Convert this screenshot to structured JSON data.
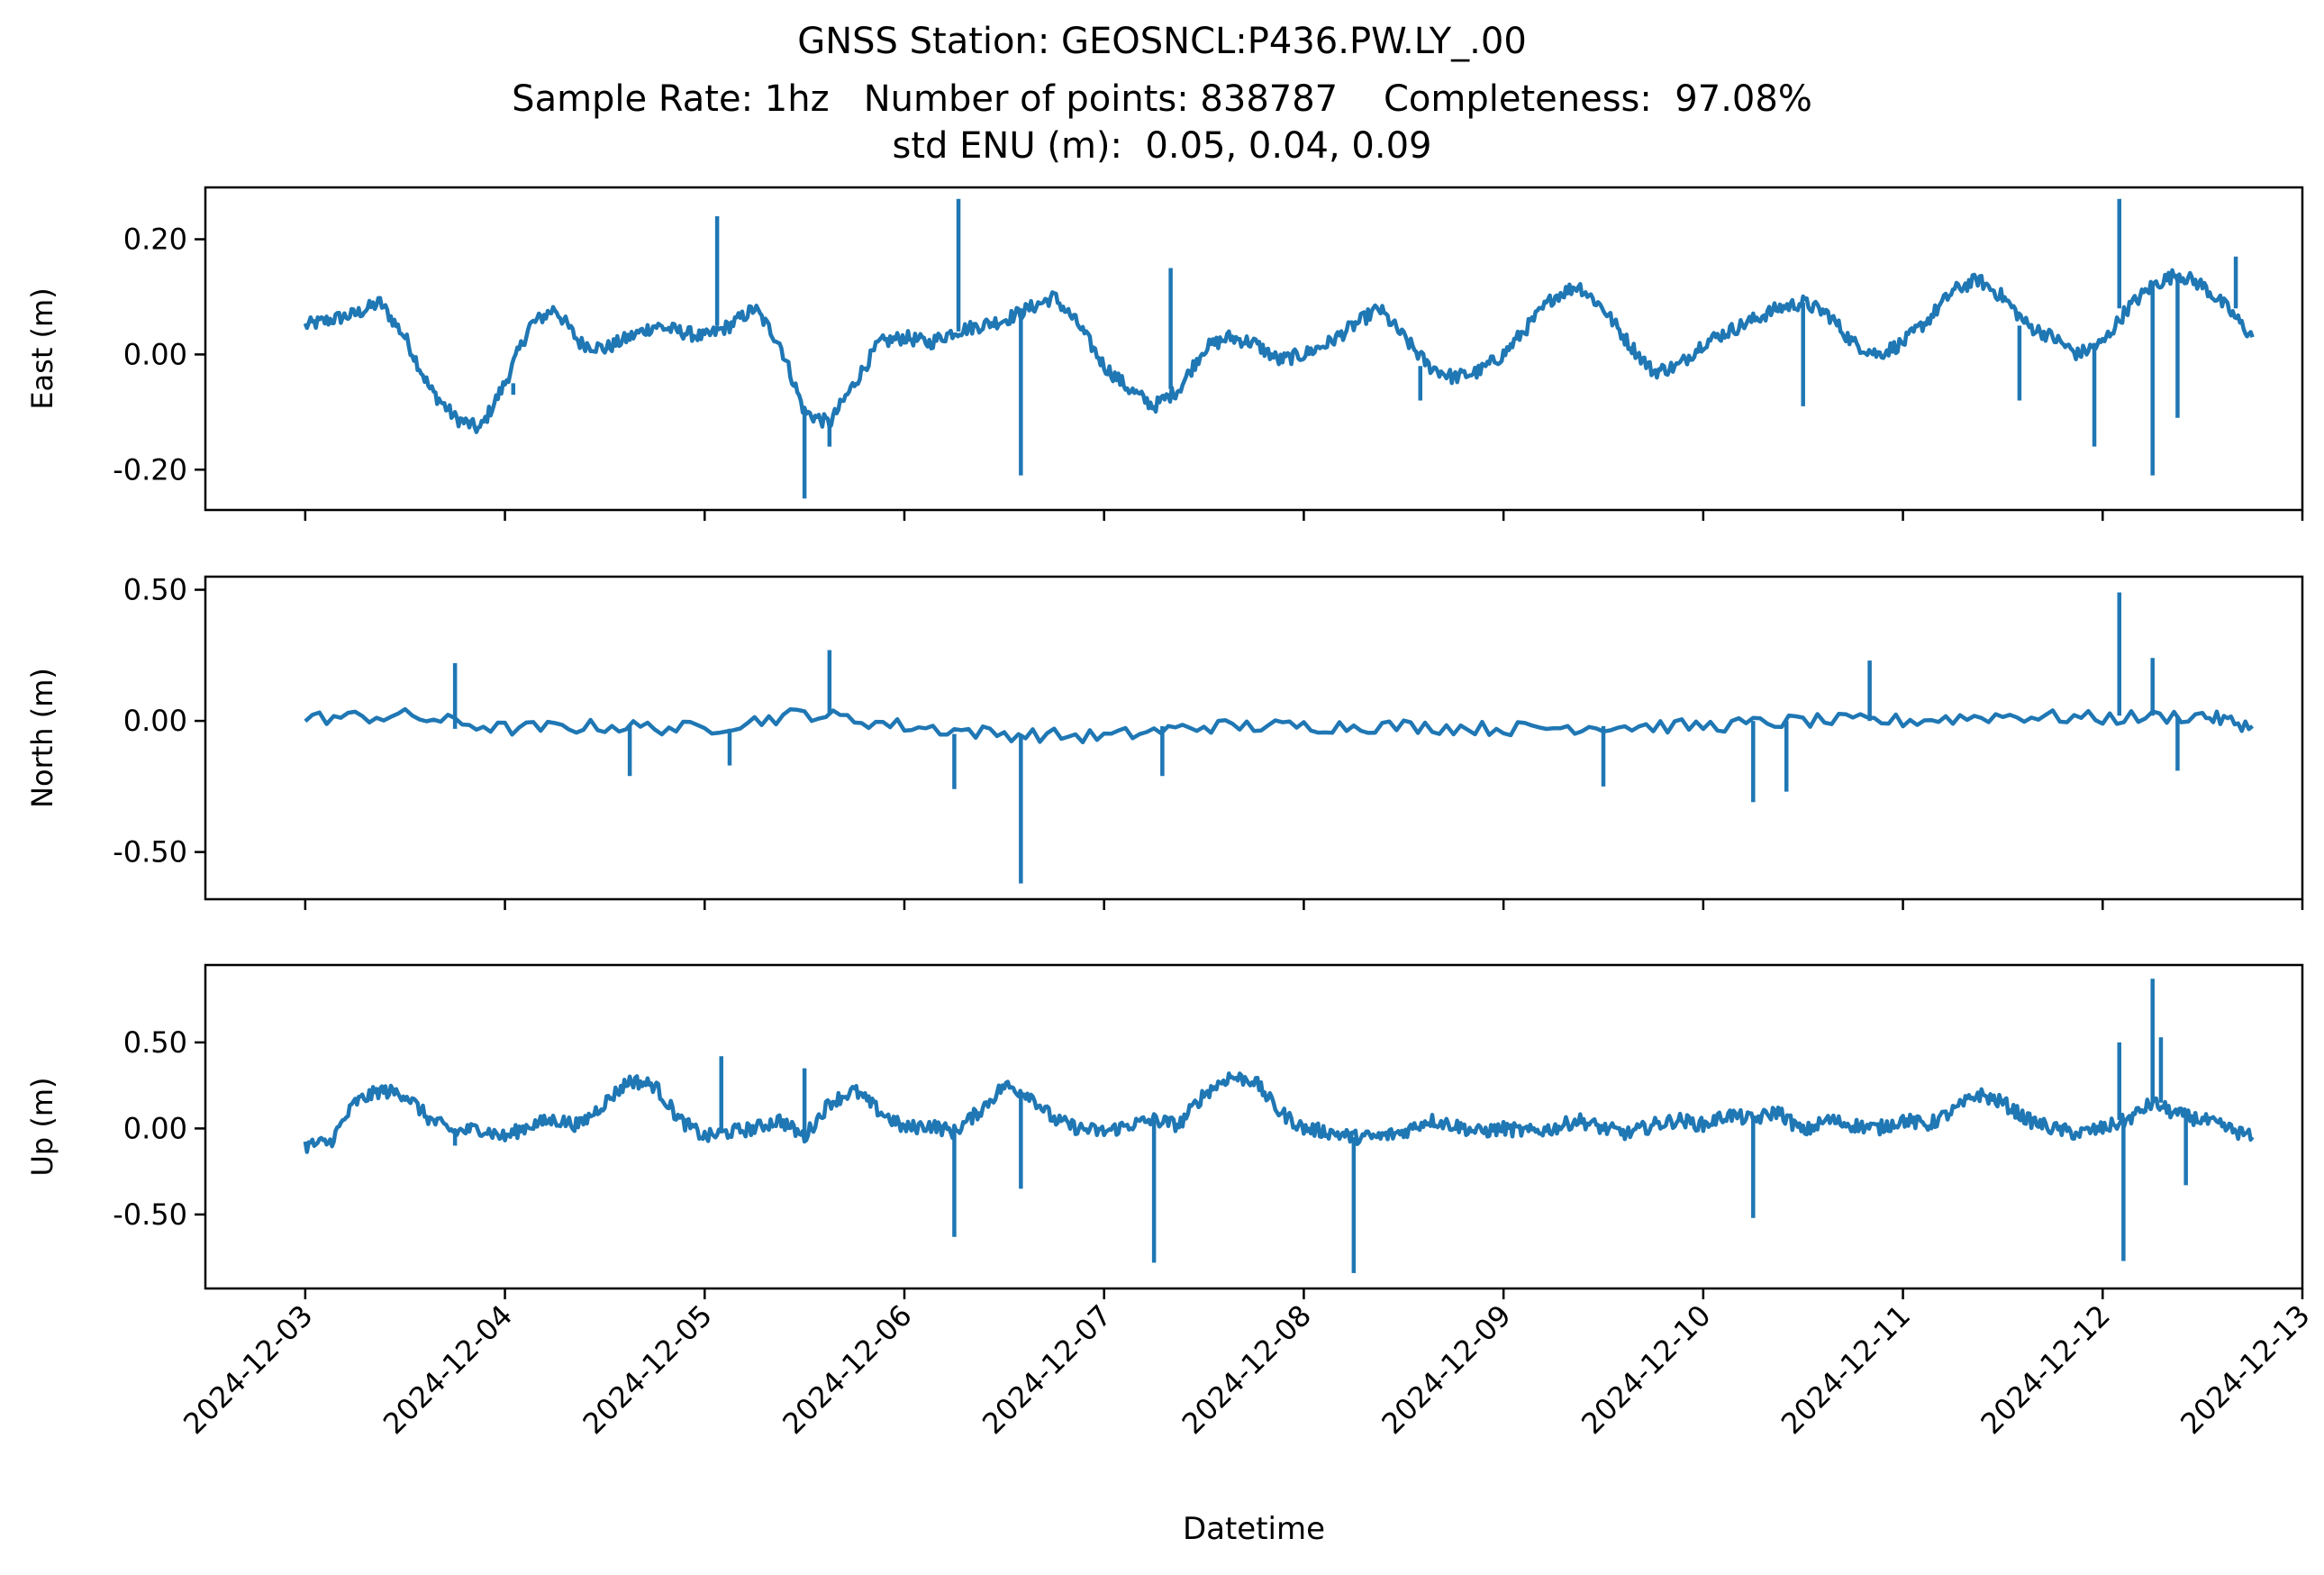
{
  "title": {
    "line1": "GNSS Station: GEOSNCL:P436.PW.LY_.00",
    "line2": "Sample Rate: 1hz   Number of points: 838787    Completeness:  97.08%",
    "line3": "std ENU (m):  0.05, 0.04, 0.09"
  },
  "chart_data": {
    "type": "line",
    "xlabel": "Datetime",
    "x_tick_labels": [
      "2024-12-03",
      "2024-12-04",
      "2024-12-05",
      "2024-12-06",
      "2024-12-07",
      "2024-12-08",
      "2024-12-09",
      "2024-12-10",
      "2024-12-11",
      "2024-12-12",
      "2024-12-13"
    ],
    "x_range": [
      "2024-12-02T12:00",
      "2024-12-13T00:00"
    ],
    "grid": false,
    "line_color": "#1f77b4",
    "panels": [
      {
        "ylabel": "East (m)",
        "ylim": [
          -0.27,
          0.29
        ],
        "yticks": [
          0.2,
          0.0,
          -0.2
        ],
        "ytick_labels": [
          "0.20",
          "0.00",
          "-0.20"
        ],
        "series": [
          {
            "x": [
              "2024-12-03T00:00",
              "2024-12-03T03:00",
              "2024-12-03T06:00",
              "2024-12-03T09:00",
              "2024-12-03T12:00",
              "2024-12-03T15:00",
              "2024-12-03T18:00",
              "2024-12-03T21:00",
              "2024-12-04T00:00",
              "2024-12-04T03:00",
              "2024-12-04T06:00",
              "2024-12-04T09:00",
              "2024-12-04T12:00",
              "2024-12-04T15:00",
              "2024-12-04T18:00",
              "2024-12-04T21:00",
              "2024-12-05T00:00",
              "2024-12-05T03:00",
              "2024-12-05T06:00",
              "2024-12-05T09:00",
              "2024-12-05T12:00",
              "2024-12-05T15:00",
              "2024-12-05T18:00",
              "2024-12-05T21:00",
              "2024-12-06T00:00",
              "2024-12-06T03:00",
              "2024-12-06T06:00",
              "2024-12-06T09:00",
              "2024-12-06T12:00",
              "2024-12-06T15:00",
              "2024-12-06T18:00",
              "2024-12-06T21:00",
              "2024-12-07T00:00",
              "2024-12-07T03:00",
              "2024-12-07T06:00",
              "2024-12-07T09:00",
              "2024-12-07T12:00",
              "2024-12-07T15:00",
              "2024-12-07T18:00",
              "2024-12-07T21:00",
              "2024-12-08T00:00",
              "2024-12-08T03:00",
              "2024-12-08T06:00",
              "2024-12-08T09:00",
              "2024-12-08T12:00",
              "2024-12-08T15:00",
              "2024-12-08T18:00",
              "2024-12-08T21:00",
              "2024-12-09T00:00",
              "2024-12-09T03:00",
              "2024-12-09T06:00",
              "2024-12-09T09:00",
              "2024-12-09T12:00",
              "2024-12-09T15:00",
              "2024-12-09T18:00",
              "2024-12-09T21:00",
              "2024-12-10T00:00",
              "2024-12-10T03:00",
              "2024-12-10T06:00",
              "2024-12-10T09:00",
              "2024-12-10T12:00",
              "2024-12-10T15:00",
              "2024-12-10T18:00",
              "2024-12-10T21:00",
              "2024-12-11T00:00",
              "2024-12-11T03:00",
              "2024-12-11T06:00",
              "2024-12-11T09:00",
              "2024-12-11T12:00",
              "2024-12-11T15:00",
              "2024-12-11T18:00",
              "2024-12-11T21:00",
              "2024-12-12T00:00",
              "2024-12-12T03:00",
              "2024-12-12T06:00",
              "2024-12-12T09:00",
              "2024-12-12T12:00",
              "2024-12-12T15:00",
              "2024-12-12T18:00"
            ],
            "y": [
              0.05,
              0.06,
              0.07,
              0.09,
              0.03,
              -0.06,
              -0.11,
              -0.13,
              -0.05,
              0.05,
              0.08,
              0.02,
              0.01,
              0.03,
              0.05,
              0.04,
              0.03,
              0.05,
              0.08,
              0.02,
              -0.1,
              -0.12,
              -0.05,
              0.02,
              0.03,
              0.02,
              0.04,
              0.05,
              0.06,
              0.08,
              0.1,
              0.05,
              -0.02,
              -0.06,
              -0.09,
              -0.06,
              0.01,
              0.03,
              0.02,
              -0.01,
              0.0,
              0.02,
              0.05,
              0.08,
              0.03,
              -0.02,
              -0.04,
              -0.03,
              0.0,
              0.05,
              0.1,
              0.12,
              0.08,
              0.02,
              -0.03,
              -0.02,
              0.02,
              0.04,
              0.06,
              0.08,
              0.09,
              0.07,
              0.02,
              0.0,
              0.02,
              0.06,
              0.11,
              0.13,
              0.1,
              0.05,
              0.03,
              0.0,
              0.02,
              0.08,
              0.12,
              0.14,
              0.12,
              0.08,
              0.03
            ]
          }
        ],
        "spikes": [
          {
            "x": "2024-12-04T01:00",
            "y": -0.07
          },
          {
            "x": "2024-12-05T01:30",
            "y": 0.24
          },
          {
            "x": "2024-12-05T12:00",
            "y": -0.25
          },
          {
            "x": "2024-12-05T15:00",
            "y": -0.16
          },
          {
            "x": "2024-12-06T06:30",
            "y": 0.27
          },
          {
            "x": "2024-12-06T14:00",
            "y": -0.21
          },
          {
            "x": "2024-12-07T08:00",
            "y": 0.15
          },
          {
            "x": "2024-12-08T14:00",
            "y": -0.08
          },
          {
            "x": "2024-12-10T12:00",
            "y": -0.09
          },
          {
            "x": "2024-12-11T14:00",
            "y": -0.08
          },
          {
            "x": "2024-12-11T23:00",
            "y": -0.16
          },
          {
            "x": "2024-12-12T02:00",
            "y": 0.27
          },
          {
            "x": "2024-12-12T06:00",
            "y": -0.21
          },
          {
            "x": "2024-12-12T09:00",
            "y": -0.11
          },
          {
            "x": "2024-12-12T16:00",
            "y": 0.17
          }
        ]
      },
      {
        "ylabel": "North (m)",
        "ylim": [
          -0.68,
          0.55
        ],
        "yticks": [
          0.5,
          0.0,
          -0.5
        ],
        "ytick_labels": [
          "0.50",
          "0.00",
          "-0.50"
        ],
        "series": [
          {
            "x": [
              "2024-12-03T00:00",
              "2024-12-03T12:00",
              "2024-12-04T00:00",
              "2024-12-04T12:00",
              "2024-12-05T00:00",
              "2024-12-05T12:00",
              "2024-12-06T00:00",
              "2024-12-06T12:00",
              "2024-12-07T00:00",
              "2024-12-07T12:00",
              "2024-12-08T00:00",
              "2024-12-08T12:00",
              "2024-12-09T00:00",
              "2024-12-09T12:00",
              "2024-12-10T00:00",
              "2024-12-10T12:00",
              "2024-12-11T00:00",
              "2024-12-11T12:00",
              "2024-12-12T00:00",
              "2024-12-12T12:00",
              "2024-12-12T18:00"
            ],
            "y": [
              0.01,
              0.02,
              -0.03,
              -0.02,
              -0.03,
              0.03,
              -0.02,
              -0.05,
              -0.06,
              -0.02,
              -0.02,
              -0.02,
              -0.03,
              -0.02,
              -0.02,
              0.0,
              0.0,
              0.02,
              0.01,
              0.02,
              -0.02
            ]
          }
        ],
        "spikes": [
          {
            "x": "2024-12-03T18:00",
            "y": 0.22
          },
          {
            "x": "2024-12-04T15:00",
            "y": -0.21
          },
          {
            "x": "2024-12-05T03:00",
            "y": -0.17
          },
          {
            "x": "2024-12-05T15:00",
            "y": 0.27
          },
          {
            "x": "2024-12-06T06:00",
            "y": -0.26
          },
          {
            "x": "2024-12-06T14:00",
            "y": -0.62
          },
          {
            "x": "2024-12-07T07:00",
            "y": -0.21
          },
          {
            "x": "2024-12-09T12:00",
            "y": -0.25
          },
          {
            "x": "2024-12-10T06:00",
            "y": -0.31
          },
          {
            "x": "2024-12-10T10:00",
            "y": -0.27
          },
          {
            "x": "2024-12-10T20:00",
            "y": 0.23
          },
          {
            "x": "2024-12-12T02:00",
            "y": 0.49
          },
          {
            "x": "2024-12-12T06:00",
            "y": 0.24
          },
          {
            "x": "2024-12-12T09:00",
            "y": -0.19
          }
        ]
      },
      {
        "ylabel": "Up (m)",
        "ylim": [
          -0.93,
          0.95
        ],
        "yticks": [
          0.5,
          0.0,
          -0.5
        ],
        "ytick_labels": [
          "0.50",
          "0.00",
          "-0.50"
        ],
        "series": [
          {
            "x": [
              "2024-12-03T00:00",
              "2024-12-03T03:00",
              "2024-12-03T06:00",
              "2024-12-03T09:00",
              "2024-12-03T12:00",
              "2024-12-03T15:00",
              "2024-12-03T18:00",
              "2024-12-03T21:00",
              "2024-12-04T00:00",
              "2024-12-04T03:00",
              "2024-12-04T06:00",
              "2024-12-04T09:00",
              "2024-12-04T12:00",
              "2024-12-04T15:00",
              "2024-12-04T18:00",
              "2024-12-04T21:00",
              "2024-12-05T00:00",
              "2024-12-05T03:00",
              "2024-12-05T06:00",
              "2024-12-05T09:00",
              "2024-12-05T12:00",
              "2024-12-05T15:00",
              "2024-12-05T18:00",
              "2024-12-05T21:00",
              "2024-12-06T00:00",
              "2024-12-06T03:00",
              "2024-12-06T06:00",
              "2024-12-06T09:00",
              "2024-12-06T12:00",
              "2024-12-06T15:00",
              "2024-12-06T18:00",
              "2024-12-06T21:00",
              "2024-12-07T00:00",
              "2024-12-07T03:00",
              "2024-12-07T06:00",
              "2024-12-07T09:00",
              "2024-12-07T12:00",
              "2024-12-07T15:00",
              "2024-12-07T18:00",
              "2024-12-07T21:00",
              "2024-12-08T00:00",
              "2024-12-08T03:00",
              "2024-12-08T06:00",
              "2024-12-08T09:00",
              "2024-12-08T12:00",
              "2024-12-08T15:00",
              "2024-12-08T18:00",
              "2024-12-08T21:00",
              "2024-12-09T00:00",
              "2024-12-09T03:00",
              "2024-12-09T06:00",
              "2024-12-09T09:00",
              "2024-12-09T12:00",
              "2024-12-09T15:00",
              "2024-12-09T18:00",
              "2024-12-09T21:00",
              "2024-12-10T00:00",
              "2024-12-10T03:00",
              "2024-12-10T06:00",
              "2024-12-10T09:00",
              "2024-12-10T12:00",
              "2024-12-10T15:00",
              "2024-12-10T18:00",
              "2024-12-10T21:00",
              "2024-12-11T00:00",
              "2024-12-11T03:00",
              "2024-12-11T06:00",
              "2024-12-11T09:00",
              "2024-12-11T12:00",
              "2024-12-11T15:00",
              "2024-12-11T18:00",
              "2024-12-11T21:00",
              "2024-12-12T00:00",
              "2024-12-12T03:00",
              "2024-12-12T06:00",
              "2024-12-12T09:00",
              "2024-12-12T12:00",
              "2024-12-12T15:00",
              "2024-12-12T18:00"
            ],
            "y": [
              -0.1,
              -0.08,
              0.15,
              0.22,
              0.2,
              0.05,
              -0.02,
              0.0,
              -0.05,
              0.02,
              0.05,
              0.02,
              0.15,
              0.28,
              0.25,
              0.05,
              -0.05,
              -0.02,
              0.0,
              0.05,
              -0.05,
              0.15,
              0.22,
              0.1,
              0.0,
              0.02,
              -0.02,
              0.1,
              0.25,
              0.2,
              0.05,
              0.0,
              -0.02,
              0.02,
              0.05,
              0.02,
              0.2,
              0.3,
              0.28,
              0.1,
              0.0,
              -0.02,
              -0.05,
              -0.05,
              -0.02,
              0.05,
              0.02,
              -0.02,
              0.0,
              -0.02,
              0.0,
              0.05,
              0.0,
              -0.03,
              0.02,
              0.05,
              0.02,
              0.08,
              0.05,
              0.1,
              -0.02,
              0.05,
              0.02,
              0.0,
              0.05,
              0.02,
              0.1,
              0.2,
              0.15,
              0.05,
              0.0,
              -0.03,
              0.0,
              0.05,
              0.15,
              0.08,
              0.05,
              0.0,
              -0.05
            ]
          }
        ],
        "spikes": [
          {
            "x": "2024-12-03T18:00",
            "y": -0.1
          },
          {
            "x": "2024-12-05T02:00",
            "y": 0.42
          },
          {
            "x": "2024-12-05T12:00",
            "y": 0.35
          },
          {
            "x": "2024-12-06T06:00",
            "y": -0.63
          },
          {
            "x": "2024-12-06T14:00",
            "y": -0.35
          },
          {
            "x": "2024-12-07T06:00",
            "y": -0.78
          },
          {
            "x": "2024-12-08T06:00",
            "y": -0.84
          },
          {
            "x": "2024-12-10T06:00",
            "y": -0.52
          },
          {
            "x": "2024-12-12T02:00",
            "y": 0.5
          },
          {
            "x": "2024-12-12T02:30",
            "y": -0.77
          },
          {
            "x": "2024-12-12T06:00",
            "y": 0.87
          },
          {
            "x": "2024-12-12T07:00",
            "y": 0.53
          },
          {
            "x": "2024-12-12T10:00",
            "y": -0.33
          }
        ]
      }
    ]
  }
}
